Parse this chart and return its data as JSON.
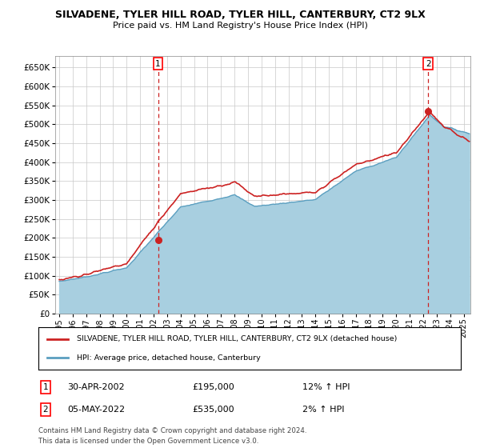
{
  "title": "SILVADENE, TYLER HILL ROAD, TYLER HILL, CANTERBURY, CT2 9LX",
  "subtitle": "Price paid vs. HM Land Registry's House Price Index (HPI)",
  "ylim": [
    0,
    680000
  ],
  "yticks": [
    0,
    50000,
    100000,
    150000,
    200000,
    250000,
    300000,
    350000,
    400000,
    450000,
    500000,
    550000,
    600000,
    650000
  ],
  "xlim_start": 1994.7,
  "xlim_end": 2025.5,
  "sale1_x": 2002.33,
  "sale1_y": 195000,
  "sale2_x": 2022.37,
  "sale2_y": 535000,
  "hpi_color": "#a8cfe0",
  "hpi_line_color": "#5b9fc0",
  "price_color": "#cc2222",
  "legend_price_label": "SILVADENE, TYLER HILL ROAD, TYLER HILL, CANTERBURY, CT2 9LX (detached house)",
  "legend_hpi_label": "HPI: Average price, detached house, Canterbury",
  "annotation1_date": "30-APR-2002",
  "annotation1_price": "£195,000",
  "annotation1_hpi": "12% ↑ HPI",
  "annotation2_date": "05-MAY-2022",
  "annotation2_price": "£535,000",
  "annotation2_hpi": "2% ↑ HPI",
  "footnote1": "Contains HM Land Registry data © Crown copyright and database right 2024.",
  "footnote2": "This data is licensed under the Open Government Licence v3.0.",
  "background_color": "#ffffff",
  "grid_color": "#c8c8c8"
}
